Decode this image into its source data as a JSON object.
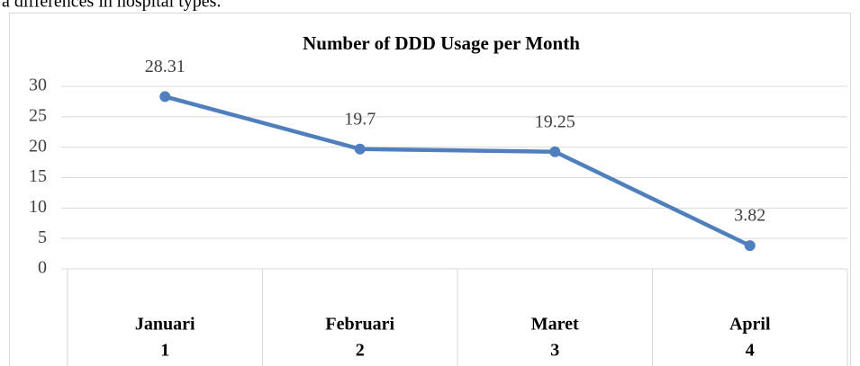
{
  "page_text": "a differences in hospital types.",
  "chart_data": {
    "type": "line",
    "title": "Number of DDD Usage per Month",
    "categories": [
      "Januari",
      "Februari",
      "Maret",
      "April"
    ],
    "category_numbers": [
      1,
      2,
      3,
      4
    ],
    "series": [
      {
        "color": "#4f7fbd",
        "values": [
          28.31,
          19.7,
          19.25,
          3.82
        ]
      }
    ],
    "ylim": [
      0,
      30
    ],
    "yticks": [
      0,
      5,
      10,
      15,
      20,
      25,
      30
    ],
    "grid": true
  }
}
